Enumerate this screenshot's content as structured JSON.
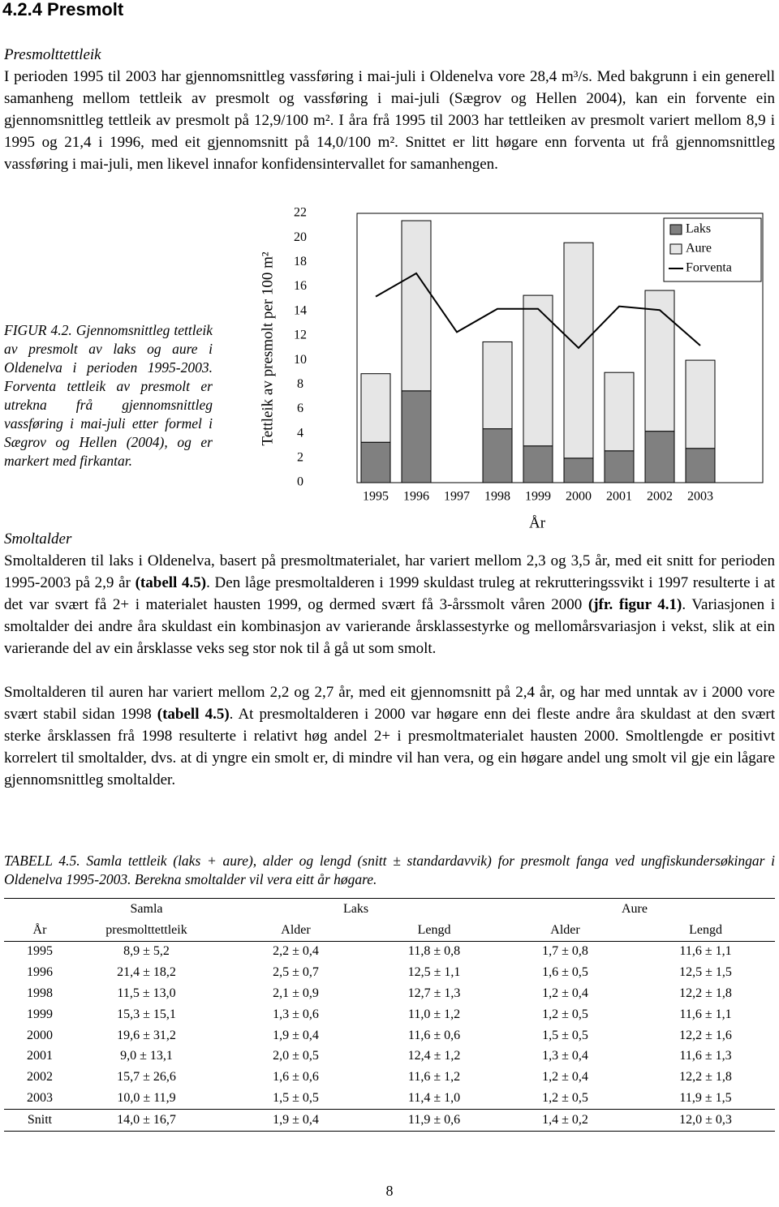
{
  "heading": "4.2.4 Presmolt",
  "section1": {
    "title": "Presmolttettleik",
    "text": "I perioden 1995 til 2003 har gjennomsnittleg vassføring i mai-juli i Oldenelva vore 28,4 m³/s. Med bakgrunn i ein generell samanheng mellom tettleik av presmolt og vassføring i mai-juli (Sægrov og Hellen 2004), kan ein forvente ein gjennomsnittleg tettleik av presmolt på 12,9/100 m². I åra frå 1995 til 2003 har tettleiken av presmolt variert mellom 8,9 i 1995 og 21,4 i 1996, med eit gjennomsnitt på 14,0/100 m². Snittet er litt høgare enn forventa ut frå gjennomsnittleg vassføring i mai-juli, men likevel innafor konfidensintervallet for samanhengen."
  },
  "figure_caption": "FIGUR 4.2. Gjennomsnittleg tettleik av presmolt av laks og aure i Oldenelva i perioden 1995-2003. Forventa tettleik av presmolt er utrekna frå gjennomsnittleg vassføring i mai-juli etter formel i Sægrov og Hellen (2004), og er markert med firkantar.",
  "chart_data": {
    "type": "bar",
    "stacked": true,
    "ylabel": "Tettleik av presmolt per 100 m²",
    "xlabel": "År",
    "categories": [
      "1995",
      "1996",
      "1997",
      "1998",
      "1999",
      "2000",
      "2001",
      "2002",
      "2003"
    ],
    "series": [
      {
        "name": "Laks",
        "color": "#808080",
        "values": [
          3.3,
          7.5,
          null,
          4.4,
          3.0,
          2.0,
          2.6,
          4.2,
          2.8
        ]
      },
      {
        "name": "Aure",
        "color": "#e6e6e6",
        "values": [
          5.6,
          13.9,
          null,
          7.1,
          12.3,
          17.6,
          6.4,
          11.5,
          7.2
        ]
      },
      {
        "name": "Forventa",
        "type": "line",
        "color": "#000000",
        "values": [
          15.2,
          17.1,
          12.3,
          14.2,
          14.2,
          11.0,
          14.4,
          14.1,
          11.2
        ]
      }
    ],
    "ylim": [
      0,
      22
    ],
    "yticks": [
      0,
      2,
      4,
      6,
      8,
      10,
      12,
      14,
      16,
      18,
      20,
      22
    ],
    "legend": "upper right"
  },
  "section2": {
    "title": "Smoltalder",
    "paragraph1": [
      "Smoltalderen til laks i Oldenelva, basert på presmoltmaterialet, har variert mellom 2,3 og 3,5 år, med eit snitt for perioden 1995-2003 på 2,9 år ",
      "(tabell 4.5)",
      ". Den låge presmoltalderen i 1999 skuldast truleg at rekrutteringssvikt i 1997 resulterte i at det var svært få 2+ i materialet hausten 1999, og dermed svært få 3-årssmolt våren 2000 ",
      "(jfr. figur 4.1)",
      ". Variasjonen i smoltalder dei andre åra skuldast ein kombinasjon av varierande årsklassestyrke og mellomårsvariasjon i vekst, slik at ein varierande del av ein årsklasse veks seg stor nok til å gå ut som smolt."
    ],
    "paragraph2": [
      "Smoltalderen til auren har variert mellom 2,2 og 2,7 år, med eit gjennomsnitt på 2,4 år, og har med unntak av i 2000 vore svært stabil sidan 1998 ",
      "(tabell 4.5)",
      ". At presmoltalderen i 2000 var høgare enn dei fleste andre åra skuldast at den svært sterke årsklassen frå 1998 resulterte i relativt høg andel 2+ i presmoltmaterialet hausten 2000. Smoltlengde er positivt korrelert til smoltalder, dvs. at di yngre ein smolt er, di mindre vil han vera, og ein høgare andel ung smolt vil gje ein lågare gjennomsnittleg smoltalder."
    ]
  },
  "table": {
    "caption": "TABELL 4.5. Samla tettleik (laks + aure), alder og lengd (snitt ± standardavvik) for presmolt fanga ved ungfiskundersøkingar i Oldenelva 1995-2003. Berekna smoltalder vil vera eitt år høgare.",
    "group_header": [
      "Samla",
      "Laks",
      "Aure"
    ],
    "header": [
      "År",
      "presmolttettleik",
      "Alder",
      "Lengd",
      "Alder",
      "Lengd"
    ],
    "rows": [
      [
        "1995",
        "8,9 ± 5,2",
        "2,2 ± 0,4",
        "11,8 ± 0,8",
        "1,7 ± 0,8",
        "11,6 ± 1,1"
      ],
      [
        "1996",
        "21,4 ± 18,2",
        "2,5 ± 0,7",
        "12,5 ± 1,1",
        "1,6 ± 0,5",
        "12,5 ± 1,5"
      ],
      [
        "1998",
        "11,5 ± 13,0",
        "2,1 ± 0,9",
        "12,7 ± 1,3",
        "1,2 ± 0,4",
        "12,2 ± 1,8"
      ],
      [
        "1999",
        "15,3 ± 15,1",
        "1,3 ± 0,6",
        "11,0 ± 1,2",
        "1,2 ± 0,5",
        "11,6 ± 1,1"
      ],
      [
        "2000",
        "19,6 ± 31,2",
        "1,9 ± 0,4",
        "11,6 ± 0,6",
        "1,5 ± 0,5",
        "12,2 ± 1,6"
      ],
      [
        "2001",
        "9,0 ± 13,1",
        "2,0 ± 0,5",
        "12,4 ± 1,2",
        "1,3 ± 0,4",
        "11,6 ± 1,3"
      ],
      [
        "2002",
        "15,7 ± 26,6",
        "1,6 ± 0,6",
        "11,6 ± 1,2",
        "1,2 ± 0,4",
        "12,2 ± 1,8"
      ],
      [
        "2003",
        "10,0 ± 11,9",
        "1,5 ± 0,5",
        "11,4 ± 1,0",
        "1,2 ± 0,5",
        "11,9 ± 1,5"
      ]
    ],
    "summary": [
      "Snitt",
      "14,0 ± 16,7",
      "1,9 ± 0,4",
      "11,9 ± 0,6",
      "1,4 ± 0,2",
      "12,0 ± 0,3"
    ]
  },
  "page_number": "8"
}
